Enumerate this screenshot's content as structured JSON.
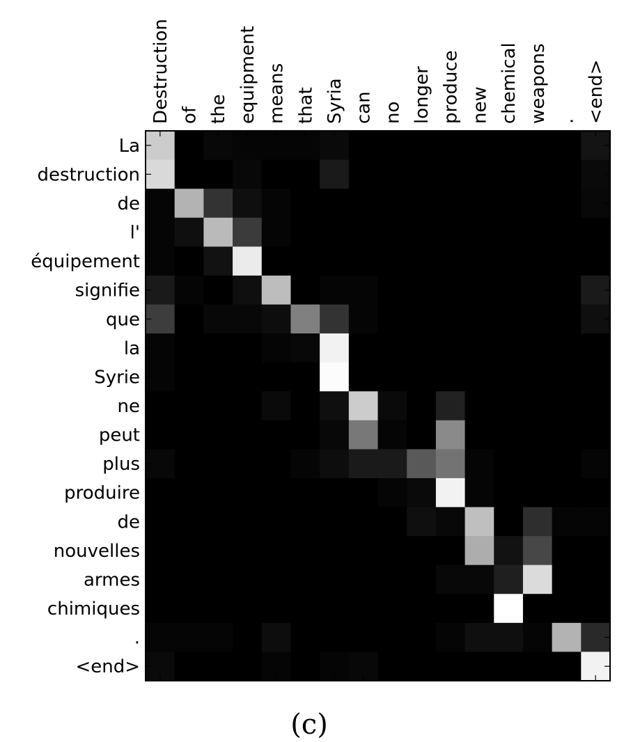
{
  "caption": "(c)",
  "chart_data": {
    "type": "heatmap",
    "colormap": "grayscale (black = 0, white = 1)",
    "x_tick_labels": [
      "Destruction",
      "of",
      "the",
      "equipment",
      "means",
      "that",
      "Syria",
      "can",
      "no",
      "longer",
      "produce",
      "new",
      "chemical",
      "weapons",
      ".",
      "<end>"
    ],
    "y_tick_labels": [
      "La",
      "destruction",
      "de",
      "l'",
      "équipement",
      "signifie",
      "que",
      "la",
      "Syrie",
      "ne",
      "peut",
      "plus",
      "produire",
      "de",
      "nouvelles",
      "armes",
      "chimiques",
      ".",
      "<end>"
    ],
    "grid": false,
    "values": [
      [
        0.8,
        0.0,
        0.03,
        0.02,
        0.02,
        0.02,
        0.04,
        0.0,
        0.0,
        0.0,
        0.0,
        0.0,
        0.0,
        0.0,
        0.0,
        0.08
      ],
      [
        0.85,
        0.0,
        0.0,
        0.03,
        0.0,
        0.0,
        0.1,
        0.0,
        0.0,
        0.0,
        0.0,
        0.0,
        0.0,
        0.0,
        0.0,
        0.04
      ],
      [
        0.02,
        0.7,
        0.2,
        0.06,
        0.02,
        0.0,
        0.0,
        0.0,
        0.0,
        0.0,
        0.0,
        0.0,
        0.0,
        0.0,
        0.0,
        0.03
      ],
      [
        0.02,
        0.06,
        0.73,
        0.23,
        0.02,
        0.0,
        0.0,
        0.0,
        0.0,
        0.0,
        0.0,
        0.0,
        0.0,
        0.0,
        0.0,
        0.0
      ],
      [
        0.02,
        0.0,
        0.07,
        0.92,
        0.0,
        0.0,
        0.0,
        0.0,
        0.0,
        0.0,
        0.0,
        0.0,
        0.0,
        0.0,
        0.0,
        0.0
      ],
      [
        0.1,
        0.02,
        0.0,
        0.06,
        0.74,
        0.0,
        0.02,
        0.02,
        0.0,
        0.0,
        0.0,
        0.0,
        0.0,
        0.0,
        0.0,
        0.1
      ],
      [
        0.24,
        0.0,
        0.03,
        0.03,
        0.05,
        0.5,
        0.2,
        0.02,
        0.0,
        0.0,
        0.0,
        0.0,
        0.0,
        0.0,
        0.0,
        0.06
      ],
      [
        0.02,
        0.0,
        0.0,
        0.0,
        0.02,
        0.03,
        0.95,
        0.0,
        0.0,
        0.0,
        0.0,
        0.0,
        0.0,
        0.0,
        0.0,
        0.0
      ],
      [
        0.02,
        0.0,
        0.0,
        0.0,
        0.0,
        0.0,
        0.99,
        0.0,
        0.0,
        0.0,
        0.0,
        0.0,
        0.0,
        0.0,
        0.0,
        0.0
      ],
      [
        0.0,
        0.0,
        0.0,
        0.0,
        0.04,
        0.0,
        0.06,
        0.8,
        0.04,
        0.0,
        0.13,
        0.0,
        0.0,
        0.0,
        0.0,
        0.0
      ],
      [
        0.0,
        0.0,
        0.0,
        0.0,
        0.0,
        0.0,
        0.03,
        0.47,
        0.02,
        0.0,
        0.54,
        0.0,
        0.0,
        0.0,
        0.0,
        0.0
      ],
      [
        0.03,
        0.0,
        0.0,
        0.0,
        0.0,
        0.02,
        0.05,
        0.1,
        0.1,
        0.35,
        0.45,
        0.02,
        0.0,
        0.0,
        0.0,
        0.02
      ],
      [
        0.0,
        0.0,
        0.0,
        0.0,
        0.0,
        0.0,
        0.0,
        0.0,
        0.02,
        0.04,
        0.95,
        0.02,
        0.0,
        0.0,
        0.0,
        0.0
      ],
      [
        0.0,
        0.0,
        0.0,
        0.0,
        0.0,
        0.0,
        0.0,
        0.0,
        0.0,
        0.06,
        0.03,
        0.75,
        0.0,
        0.18,
        0.02,
        0.02
      ],
      [
        0.0,
        0.0,
        0.0,
        0.0,
        0.0,
        0.0,
        0.0,
        0.0,
        0.0,
        0.0,
        0.0,
        0.68,
        0.07,
        0.28,
        0.0,
        0.0
      ],
      [
        0.0,
        0.0,
        0.0,
        0.0,
        0.0,
        0.0,
        0.0,
        0.0,
        0.0,
        0.0,
        0.03,
        0.03,
        0.12,
        0.86,
        0.0,
        0.0
      ],
      [
        0.0,
        0.0,
        0.0,
        0.0,
        0.0,
        0.0,
        0.0,
        0.0,
        0.0,
        0.0,
        0.0,
        0.0,
        1.0,
        0.0,
        0.0,
        0.0
      ],
      [
        0.02,
        0.02,
        0.02,
        0.0,
        0.05,
        0.0,
        0.0,
        0.0,
        0.0,
        0.0,
        0.02,
        0.06,
        0.06,
        0.02,
        0.7,
        0.16
      ],
      [
        0.04,
        0.0,
        0.0,
        0.0,
        0.02,
        0.0,
        0.02,
        0.03,
        0.0,
        0.0,
        0.0,
        0.0,
        0.0,
        0.0,
        0.0,
        0.95
      ]
    ]
  }
}
